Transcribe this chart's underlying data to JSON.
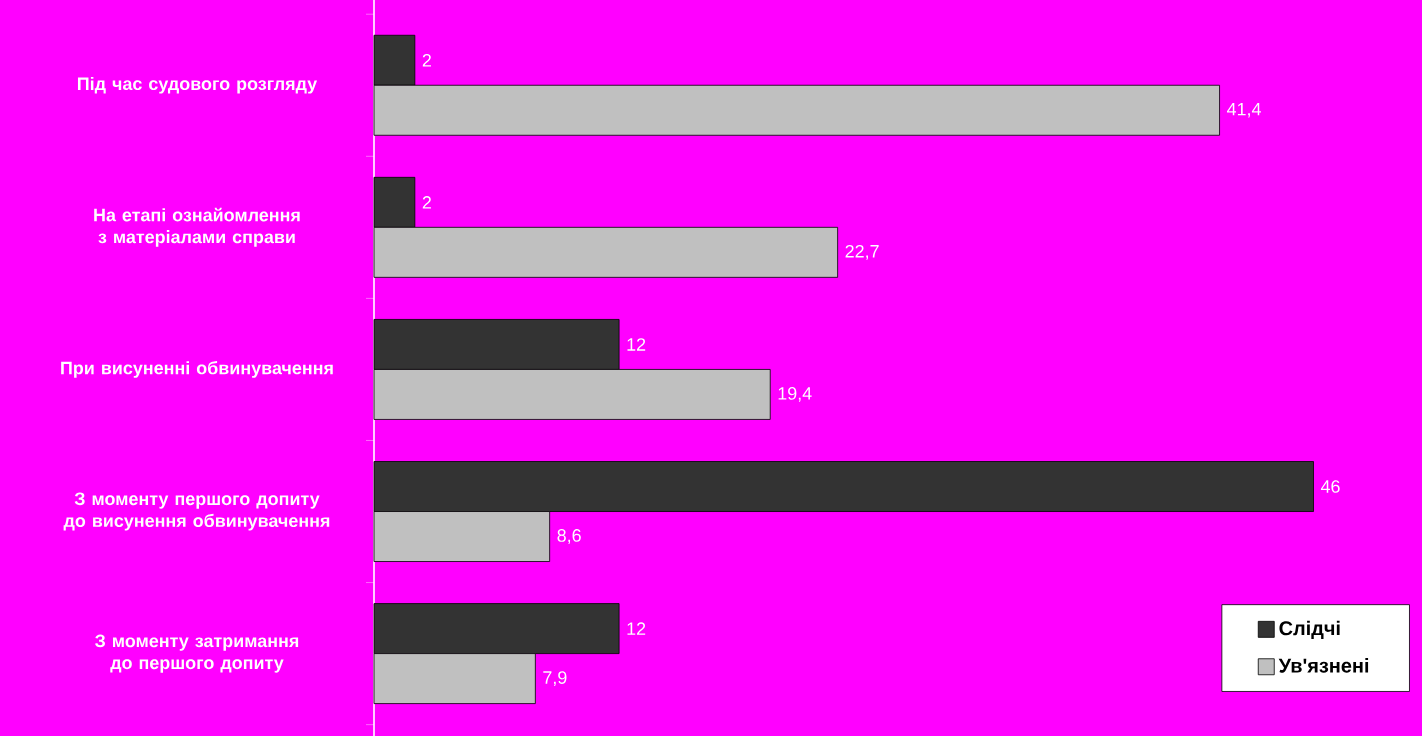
{
  "chart_data": {
    "type": "bar",
    "orientation": "horizontal",
    "categories": [
      "Під час судового розгляду",
      "На етапі ознайомлення з матеріалами справи",
      "При висуненні обвинувачення",
      "З моменту першого допиту до висунення обвинувачення",
      "З моменту затримання до першого допиту"
    ],
    "series": [
      {
        "name": "Слідчі",
        "color": "#333333",
        "values": [
          2,
          2,
          12,
          46,
          12
        ],
        "value_labels": [
          "2",
          "2",
          "12",
          "46",
          "12"
        ]
      },
      {
        "name": "Ув'язнені",
        "color": "#c0c0c0",
        "values": [
          41.4,
          22.7,
          19.4,
          8.6,
          7.9
        ],
        "value_labels": [
          "41,4",
          "22,7",
          "19,4",
          "8,6",
          "7,9"
        ]
      }
    ],
    "legend": "bottom right"
  }
}
